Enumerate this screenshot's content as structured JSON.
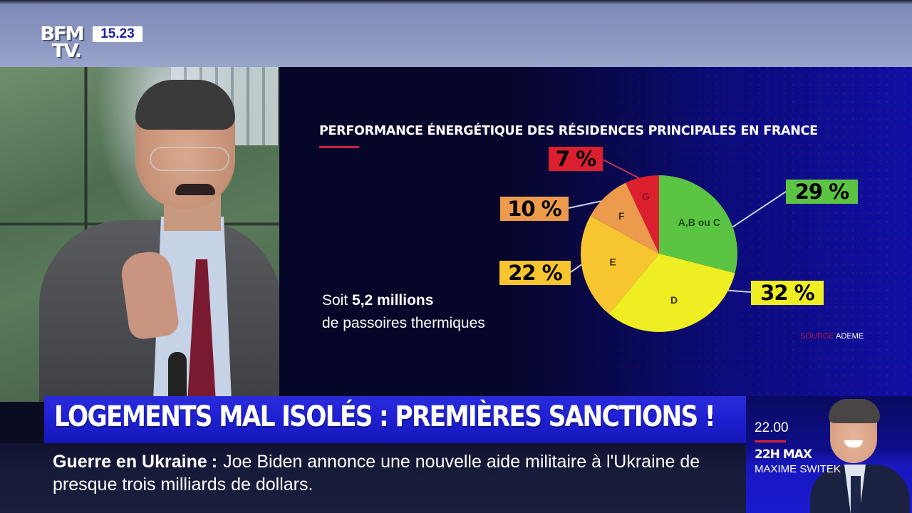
{
  "channel": {
    "logo_line1": "BFM",
    "logo_line2": "TV.",
    "clock": "15.23"
  },
  "graphic": {
    "title": "PERFORMANCE ÉNERGÉTIQUE DES RÉSIDENCES PRINCIPALES EN FRANCE",
    "stat_prefix": "Soit ",
    "stat_highlight": "5,2 millions",
    "stat_line2": "de passoires thermiques",
    "source_label": "SOURCE",
    "source_value": "ADEME",
    "accent_color": "#c8243f"
  },
  "chart_data": {
    "type": "pie",
    "title": "PERFORMANCE ÉNERGÉTIQUE DES RÉSIDENCES PRINCIPALES EN FRANCE",
    "categories": [
      "A, B ou C",
      "D",
      "E",
      "F",
      "G"
    ],
    "values": [
      29,
      32,
      22,
      10,
      7
    ],
    "unit": "%",
    "labels": [
      "29 %",
      "32 %",
      "22 %",
      "10 %",
      "7 %"
    ],
    "colors": [
      "#5cc443",
      "#eeee22",
      "#f7c530",
      "#ec9a4c",
      "#dc1f2e"
    ],
    "start_angle": "12 o'clock, clockwise",
    "annotation": "Soit 5,2 millions de passoires thermiques",
    "source": "ADEME"
  },
  "headline": {
    "text": "LOGEMENTS MAL ISOLÉS : PREMIÈRES SANCTIONS !"
  },
  "ticker": {
    "topic": "Guerre en Ukraine",
    "separator": ":",
    "text": "Joe Biden annonce une nouvelle aide militaire à l'Ukraine de presque trois milliards de dollars."
  },
  "next_show": {
    "time": "22.00",
    "show": "22H MAX",
    "host": "MAXIME SWITEK"
  }
}
